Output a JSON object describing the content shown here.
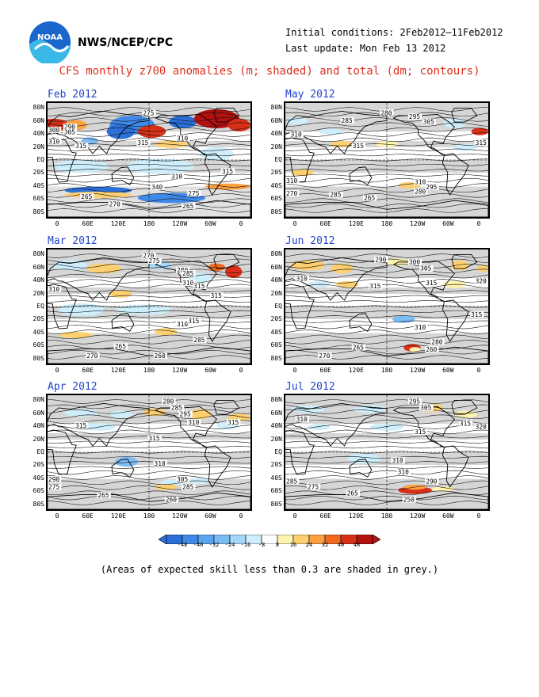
{
  "header": {
    "agency": "NWS/NCEP/CPC",
    "initial_conditions": "Initial conditions: 2Feb2012–11Feb2012",
    "last_update": "Last update: Mon Feb 13 2012",
    "title": "CFS monthly z700 anomalies (m; shaded) and total (dm; contours)",
    "logo_text": "NOAA"
  },
  "axes": {
    "lat_labels": [
      "80N",
      "60N",
      "40N",
      "20N",
      "EQ",
      "20S",
      "40S",
      "60S",
      "80S"
    ],
    "lon_labels": [
      "0",
      "60E",
      "120E",
      "180",
      "120W",
      "60W",
      "0"
    ]
  },
  "panels": [
    {
      "title": "Feb 2012",
      "contour_labels": [
        "275",
        "290",
        "305",
        "300",
        "310",
        "315",
        "315",
        "310",
        "315",
        "310",
        "340",
        "275",
        "265",
        "270",
        "265"
      ]
    },
    {
      "title": "May 2012",
      "contour_labels": [
        "280",
        "285",
        "295",
        "305",
        "310",
        "315",
        "310",
        "315",
        "310",
        "270",
        "285",
        "280",
        "295",
        "265"
      ]
    },
    {
      "title": "Mar 2012",
      "contour_labels": [
        "270",
        "275",
        "280",
        "285",
        "310",
        "315",
        "310",
        "315",
        "310",
        "315",
        "265",
        "270",
        "260",
        "285"
      ]
    },
    {
      "title": "Jun 2012",
      "contour_labels": [
        "290",
        "300",
        "305",
        "310",
        "315",
        "320",
        "315",
        "310",
        "315",
        "265",
        "270",
        "280",
        "260"
      ]
    },
    {
      "title": "Apr 2012",
      "contour_labels": [
        "280",
        "285",
        "295",
        "310",
        "315",
        "315",
        "315",
        "310",
        "305",
        "290",
        "285",
        "275",
        "265",
        "260"
      ]
    },
    {
      "title": "Jul 2012",
      "contour_labels": [
        "295",
        "305",
        "310",
        "315",
        "320",
        "315",
        "310",
        "310",
        "290",
        "265",
        "275",
        "285",
        "250"
      ]
    }
  ],
  "colorbar": {
    "colors": [
      "#2b6fd8",
      "#3f8ae8",
      "#5aa4f0",
      "#7cbcf5",
      "#a6d6f8",
      "#cdeefa",
      "#ffffff",
      "#fff3b0",
      "#fcd070",
      "#fca040",
      "#f26a20",
      "#d83018",
      "#b31010"
    ],
    "labels": [
      "-48",
      "-40",
      "-32",
      "-24",
      "-16",
      "-8",
      "8",
      "16",
      "24",
      "32",
      "40",
      "48"
    ]
  },
  "footnote": "(Areas of expected skill less than 0.3 are shaded in grey.)"
}
